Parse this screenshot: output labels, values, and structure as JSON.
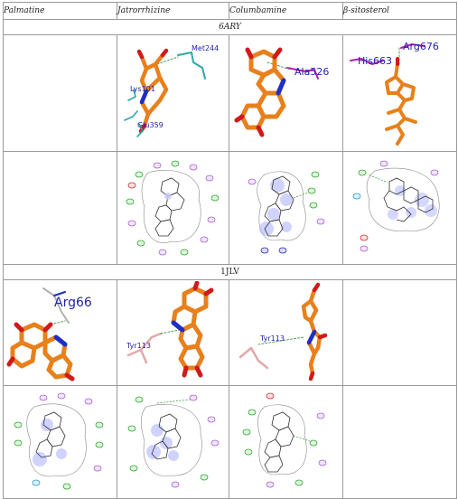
{
  "table": {
    "headers": [
      "Palmatine",
      "Jatrorrhizine",
      "Columbamine",
      "β-sitosterol"
    ],
    "section_6ary": "6ARY",
    "section_1jlv": "1JLV"
  },
  "labels": {
    "jat_6ary_met": "Met244",
    "jat_6ary_lys": "Lys101",
    "jat_6ary_glu": "Glu359",
    "col_6ary_ala": "Ala526",
    "sit_6ary_arg": "Arg676",
    "sit_6ary_his": "His663",
    "pal_1jlv_arg": "Arg66",
    "jat_1jlv_tyr": "Tyr113",
    "col_1jlv_tyr": "Tyr113"
  },
  "colors": {
    "ligand": "#e8801c",
    "oxygen": "#d11a1a",
    "nitrogen": "#1e2ec8",
    "residue_teal": "#2aa8a8",
    "residue_magenta": "#b51cb5",
    "residue_pink": "#e2a8a8",
    "hbond": "#4aa04a"
  }
}
